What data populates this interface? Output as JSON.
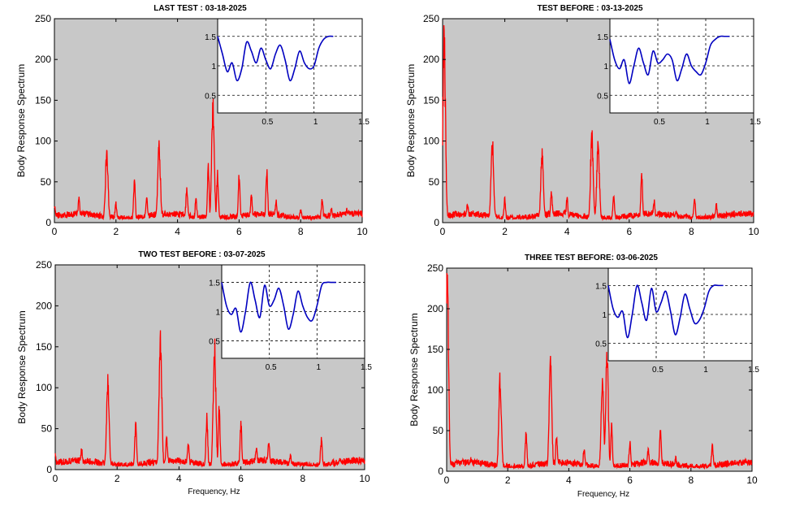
{
  "colors": {
    "plot_bg": "#c8c8c8",
    "spectrum": "#ff0000",
    "inset_line": "#0000c0",
    "inset_bg": "#ffffff"
  },
  "chart_data": [
    {
      "type": "line",
      "title": "LAST TEST : 03-18-2025",
      "ylabel": "Body Response Spectrum",
      "xlabel": "",
      "xlim": [
        0,
        10
      ],
      "ylim": [
        0,
        250
      ],
      "x_ticks": [
        "0",
        "2",
        "4",
        "6",
        "8",
        "10"
      ],
      "y_ticks": [
        "0",
        "50",
        "100",
        "150",
        "200",
        "250"
      ],
      "background": "gray",
      "series": [
        {
          "peaks": [
            [
              0.0,
              20
            ],
            [
              0.8,
              32
            ],
            [
              1.7,
              92
            ],
            [
              2.0,
              25
            ],
            [
              2.6,
              55
            ],
            [
              3.0,
              30
            ],
            [
              3.4,
              98
            ],
            [
              4.3,
              45
            ],
            [
              4.6,
              30
            ],
            [
              5.0,
              70
            ],
            [
              5.15,
              155
            ],
            [
              5.3,
              65
            ],
            [
              6.0,
              60
            ],
            [
              6.4,
              35
            ],
            [
              6.9,
              68
            ],
            [
              7.2,
              28
            ],
            [
              8.0,
              14
            ],
            [
              8.7,
              28
            ],
            [
              9.0,
              18
            ],
            [
              9.5,
              15
            ]
          ]
        }
      ],
      "inset": {
        "xlim": [
          0,
          1.5
        ],
        "ylim": [
          0.2,
          1.8
        ],
        "x_ticks": [
          "0.5",
          "1",
          "1.5"
        ],
        "y_ticks": [
          "0.5",
          "1",
          "1.5"
        ],
        "grid": true,
        "x": [
          0.0,
          0.05,
          0.1,
          0.15,
          0.2,
          0.25,
          0.3,
          0.35,
          0.4,
          0.45,
          0.5,
          0.55,
          0.6,
          0.65,
          0.7,
          0.75,
          0.8,
          0.85,
          0.9,
          0.95,
          1.0,
          1.05,
          1.1,
          1.15,
          1.2
        ],
        "y": [
          1.5,
          1.2,
          0.9,
          1.05,
          0.75,
          0.95,
          1.4,
          1.25,
          1.05,
          1.3,
          1.1,
          0.95,
          1.2,
          1.35,
          1.1,
          0.75,
          0.95,
          1.25,
          1.05,
          0.95,
          1.0,
          1.3,
          1.45,
          1.5,
          1.5
        ]
      }
    },
    {
      "type": "line",
      "title": "TEST BEFORE : 03-13-2025",
      "ylabel": "Body Response Spectrum",
      "xlabel": "",
      "xlim": [
        0,
        10
      ],
      "ylim": [
        0,
        250
      ],
      "x_ticks": [
        "0",
        "2",
        "4",
        "6",
        "8",
        "10"
      ],
      "y_ticks": [
        "0",
        "50",
        "100",
        "150",
        "200",
        "250"
      ],
      "background": "gray",
      "series": [
        {
          "peaks": [
            [
              0.05,
              250
            ],
            [
              0.8,
              24
            ],
            [
              1.6,
              105
            ],
            [
              2.0,
              28
            ],
            [
              3.2,
              92
            ],
            [
              3.5,
              40
            ],
            [
              4.0,
              30
            ],
            [
              4.8,
              118
            ],
            [
              5.0,
              105
            ],
            [
              5.5,
              30
            ],
            [
              6.4,
              60
            ],
            [
              6.8,
              25
            ],
            [
              7.5,
              12
            ],
            [
              8.1,
              30
            ],
            [
              8.8,
              22
            ],
            [
              9.5,
              10
            ]
          ]
        }
      ],
      "inset": {
        "xlim": [
          0,
          1.5
        ],
        "ylim": [
          0.2,
          1.8
        ],
        "x_ticks": [
          "0.5",
          "1",
          "1.5"
        ],
        "y_ticks": [
          "0.5",
          "1",
          "1.5"
        ],
        "grid": true,
        "x": [
          0.0,
          0.05,
          0.1,
          0.15,
          0.2,
          0.25,
          0.3,
          0.35,
          0.4,
          0.45,
          0.5,
          0.55,
          0.6,
          0.65,
          0.7,
          0.75,
          0.8,
          0.85,
          0.9,
          0.95,
          1.0,
          1.05,
          1.1,
          1.15,
          1.2,
          1.25
        ],
        "y": [
          1.45,
          1.1,
          0.95,
          1.1,
          0.7,
          1.0,
          1.3,
          1.05,
          0.85,
          1.25,
          1.05,
          1.1,
          1.2,
          1.1,
          0.75,
          0.95,
          1.2,
          1.0,
          0.9,
          0.85,
          1.05,
          1.35,
          1.45,
          1.5,
          1.5,
          1.5
        ]
      }
    },
    {
      "type": "line",
      "title": "TWO TEST BEFORE : 03-07-2025",
      "ylabel": "Body Response Spectrum",
      "xlabel": "Frequency, Hz",
      "xlim": [
        0,
        10
      ],
      "ylim": [
        0,
        250
      ],
      "x_ticks": [
        "0",
        "2",
        "4",
        "6",
        "8",
        "10"
      ],
      "y_ticks": [
        "0",
        "50",
        "100",
        "150",
        "200",
        "250"
      ],
      "background": "gray",
      "series": [
        {
          "peaks": [
            [
              0.0,
              18
            ],
            [
              0.85,
              25
            ],
            [
              1.7,
              112
            ],
            [
              2.6,
              62
            ],
            [
              3.4,
              172
            ],
            [
              3.6,
              40
            ],
            [
              4.3,
              35
            ],
            [
              4.9,
              70
            ],
            [
              5.15,
              170
            ],
            [
              5.3,
              80
            ],
            [
              6.0,
              60
            ],
            [
              6.5,
              28
            ],
            [
              6.9,
              35
            ],
            [
              7.6,
              18
            ],
            [
              8.6,
              38
            ],
            [
              9.2,
              12
            ]
          ]
        }
      ],
      "inset": {
        "xlim": [
          0,
          1.5
        ],
        "ylim": [
          0.2,
          1.8
        ],
        "x_ticks": [
          "0.5",
          "1",
          "1.5"
        ],
        "y_ticks": [
          "0.5",
          "1",
          "1.5"
        ],
        "grid": true,
        "x": [
          0.0,
          0.05,
          0.1,
          0.15,
          0.2,
          0.25,
          0.3,
          0.35,
          0.4,
          0.45,
          0.5,
          0.55,
          0.6,
          0.65,
          0.7,
          0.75,
          0.8,
          0.85,
          0.9,
          0.95,
          1.0,
          1.05,
          1.1,
          1.15,
          1.2
        ],
        "y": [
          1.5,
          1.1,
          0.95,
          1.05,
          0.65,
          1.0,
          1.5,
          1.2,
          0.9,
          1.45,
          1.1,
          1.2,
          1.4,
          1.1,
          0.7,
          0.95,
          1.35,
          1.1,
          0.9,
          0.85,
          1.1,
          1.45,
          1.5,
          1.5,
          1.5
        ]
      }
    },
    {
      "type": "line",
      "title": "THREE TEST BEFORE:   03-06-2025",
      "ylabel": "Body Response Spectrum",
      "xlabel": "Frequency, Hz",
      "xlim": [
        0,
        10
      ],
      "ylim": [
        0,
        250
      ],
      "x_ticks": [
        "0",
        "2",
        "4",
        "6",
        "8",
        "10"
      ],
      "y_ticks": [
        "0",
        "50",
        "100",
        "150",
        "200",
        "250"
      ],
      "background": "gray",
      "series": [
        {
          "peaks": [
            [
              0.02,
              250
            ],
            [
              0.8,
              15
            ],
            [
              1.75,
              122
            ],
            [
              2.6,
              50
            ],
            [
              3.4,
              143
            ],
            [
              3.6,
              45
            ],
            [
              4.5,
              28
            ],
            [
              5.1,
              115
            ],
            [
              5.25,
              155
            ],
            [
              5.4,
              60
            ],
            [
              6.0,
              38
            ],
            [
              6.6,
              30
            ],
            [
              7.0,
              55
            ],
            [
              7.5,
              15
            ],
            [
              8.7,
              32
            ],
            [
              9.5,
              10
            ]
          ]
        }
      ],
      "inset": {
        "xlim": [
          0,
          1.5
        ],
        "ylim": [
          0.2,
          1.8
        ],
        "x_ticks": [
          "0.5",
          "1",
          "1.5"
        ],
        "y_ticks": [
          "0.5",
          "1",
          "1.5"
        ],
        "grid": true,
        "x": [
          0.0,
          0.05,
          0.1,
          0.15,
          0.2,
          0.25,
          0.3,
          0.35,
          0.4,
          0.45,
          0.5,
          0.55,
          0.6,
          0.65,
          0.7,
          0.75,
          0.8,
          0.85,
          0.9,
          0.95,
          1.0,
          1.05,
          1.1,
          1.15,
          1.2
        ],
        "y": [
          1.5,
          1.1,
          0.95,
          1.05,
          0.6,
          1.0,
          1.5,
          1.2,
          0.9,
          1.45,
          1.05,
          1.2,
          1.4,
          1.05,
          0.65,
          0.95,
          1.35,
          1.1,
          0.85,
          0.9,
          1.1,
          1.4,
          1.5,
          1.5,
          1.5
        ]
      }
    }
  ]
}
